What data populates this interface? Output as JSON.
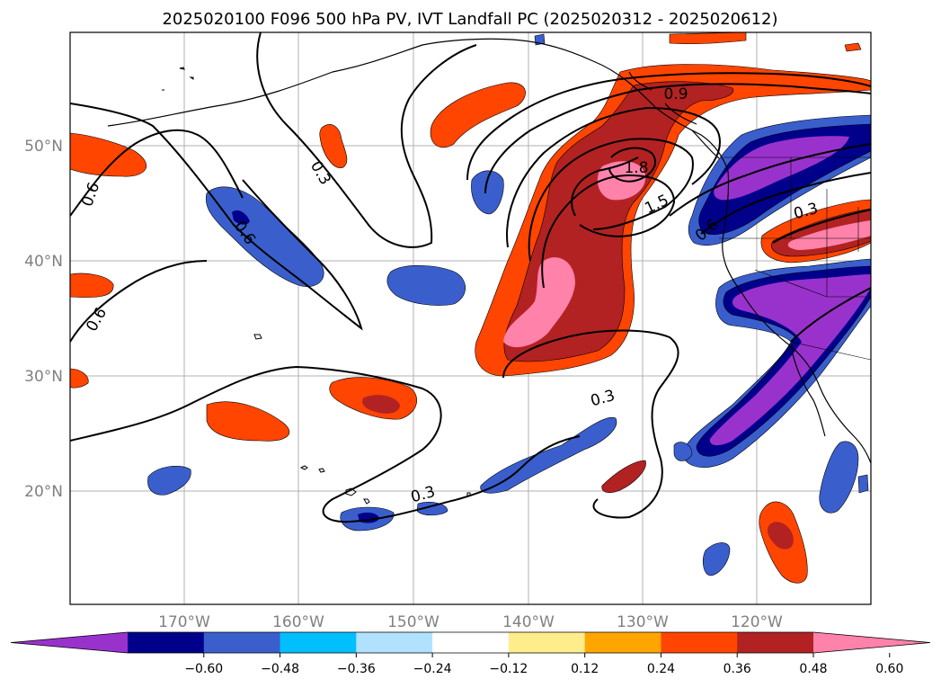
{
  "title": "2025020100 F096 500 hPa PV, IVT Landfall PC (2025020312 - 2025020612)",
  "map": {
    "lat_labels": [
      "50°N",
      "40°N",
      "30°N",
      "20°N"
    ],
    "lon_labels": [
      "170°W",
      "160°W",
      "150°W",
      "140°W",
      "130°W",
      "120°W"
    ],
    "contour_labels": [
      "0.3",
      "0.6",
      "0.6",
      "0.6",
      "0.6",
      "0.9",
      "1.8",
      "1.5",
      "0.3",
      "0.3",
      "0.3"
    ]
  },
  "colorbar": {
    "ticks": [
      "−0.60",
      "−0.48",
      "−0.36",
      "−0.24",
      "−0.12",
      "0.12",
      "0.24",
      "0.36",
      "0.48",
      "0.60"
    ],
    "colors": [
      "#9932CC",
      "#00008B",
      "#3A5FCD",
      "#00BFFF",
      "#B0E2FF",
      "#FFFFFF",
      "#FFEC8B",
      "#FFA500",
      "#FF4500",
      "#B22222",
      "#FF82AB"
    ]
  }
}
